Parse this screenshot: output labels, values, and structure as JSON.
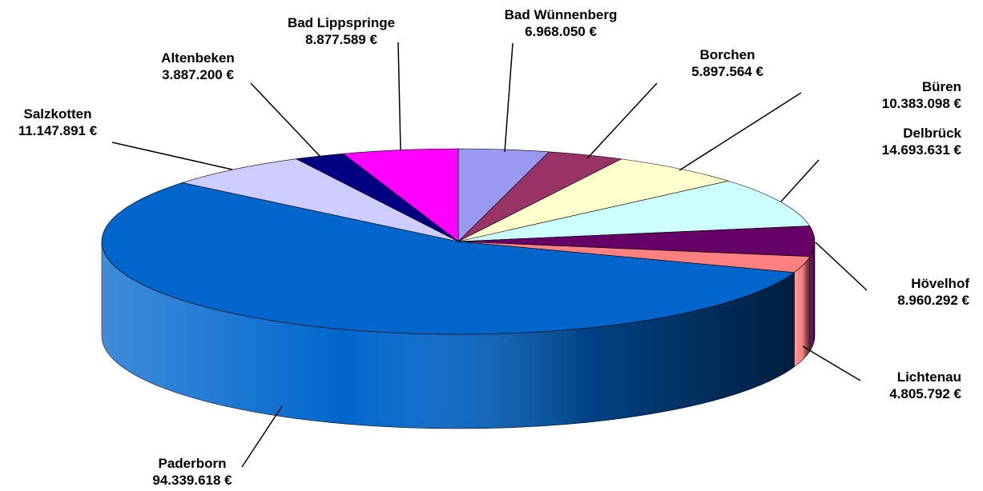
{
  "chart_data": {
    "type": "pie",
    "title": "",
    "legend": "none",
    "categories": [
      "Bad Wünnenberg",
      "Borchen",
      "Büren",
      "Delbrück",
      "Hövelhof",
      "Lichtenau",
      "Paderborn",
      "Salzkotten",
      "Altenbeken",
      "Bad Lippspringe"
    ],
    "values": [
      6968050,
      5897564,
      10383098,
      14693631,
      8960292,
      4805792,
      94339618,
      11147891,
      3887200,
      8877589
    ],
    "value_labels": [
      "6.968.050 €",
      "5.897.564 €",
      "10.383.098 €",
      "14.693.631 €",
      "8.960.292 €",
      "4.805.792 €",
      "94.339.618 €",
      "11.147.891 €",
      "3.887.200 €",
      "8.877.589 €"
    ],
    "colors": [
      "#9999F2",
      "#993366",
      "#FFFFCC",
      "#CCFFFF",
      "#660066",
      "#FF8080",
      "#0066CC",
      "#CCCCFF",
      "#000080",
      "#FF00FF"
    ],
    "start_angle_deg": 0,
    "direction": "clockwise",
    "style": "3d"
  }
}
